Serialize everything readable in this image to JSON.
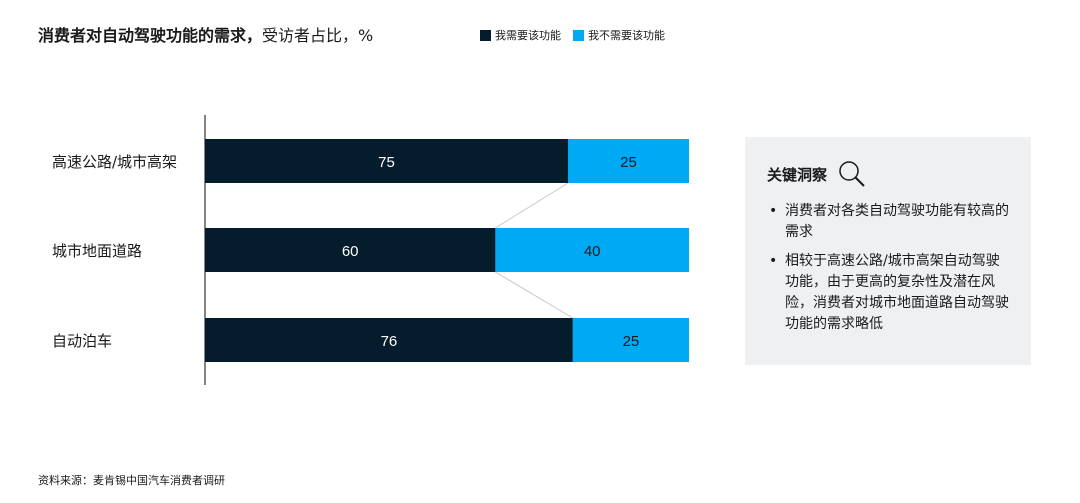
{
  "title": {
    "bold": "消费者对自动驾驶功能的需求，",
    "normal": "受访者占比，%"
  },
  "colors": {
    "need": "#051c2c",
    "no_need": "#00a9f4"
  },
  "chart_data": {
    "type": "bar",
    "orientation": "horizontal",
    "stacked": true,
    "categories": [
      "高速公路/城市高架",
      "城市地面道路",
      "自动泊车"
    ],
    "series": [
      {
        "name": "我需要该功能",
        "values": [
          75,
          60,
          76
        ]
      },
      {
        "name": "我不需要该功能",
        "values": [
          25,
          40,
          25
        ]
      }
    ],
    "xlim": [
      0,
      100
    ],
    "legend": "top",
    "grid": false
  },
  "insight": {
    "heading": "关键洞察",
    "icon": "magnifier-icon",
    "bullets": [
      "消费者对各类自动驾驶功能有较高的需求",
      "相较于高速公路/城市高架自动驾驶功能，由于更高的复杂性及潜在风险，消费者对城市地面道路自动驾驶功能的需求略低"
    ]
  },
  "source": "资料来源：麦肯锡中国汽车消费者调研"
}
